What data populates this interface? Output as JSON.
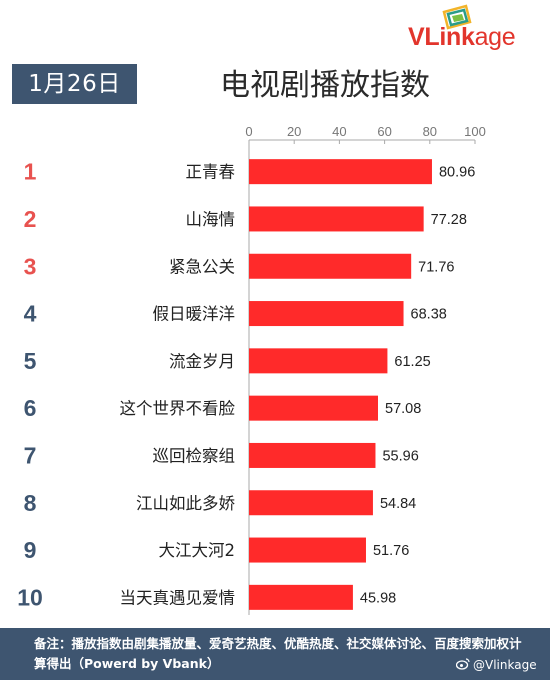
{
  "header": {
    "date": "1月26日",
    "title": "电视剧播放指数",
    "logo_text": "VLinkage"
  },
  "colors": {
    "bar": "#ff2a2a",
    "rank_top": "#e8524f",
    "rank_other": "#3e5570",
    "badge_bg": "#3e5570",
    "axis": "#aaaaaa"
  },
  "chart_data": {
    "type": "bar",
    "orientation": "horizontal",
    "title": "电视剧播放指数",
    "ranks": [
      "1",
      "2",
      "3",
      "4",
      "5",
      "6",
      "7",
      "8",
      "9",
      "10"
    ],
    "categories": [
      "正青春",
      "山海情",
      "紧急公关",
      "假日暖洋洋",
      "流金岁月",
      "这个世界不看脸",
      "巡回检察组",
      "江山如此多娇",
      "大江大河2",
      "当天真遇见爱情"
    ],
    "values": [
      80.96,
      77.28,
      71.76,
      68.38,
      61.25,
      57.08,
      55.96,
      54.84,
      51.76,
      45.98
    ],
    "value_labels": [
      "80.96",
      "77.28",
      "71.76",
      "68.38",
      "61.25",
      "57.08",
      "55.96",
      "54.84",
      "51.76",
      "45.98"
    ],
    "xlim": [
      0,
      100
    ],
    "xticks": [
      "0",
      "20",
      "40",
      "60",
      "80",
      "100"
    ],
    "tick_values": [
      0,
      20,
      40,
      60,
      80,
      100
    ],
    "grid": false,
    "legend": "none"
  },
  "footer": {
    "note": "备注：播放指数由剧集播放量、爱奇艺热度、优酷热度、社交媒体讨论、百度搜索加权计算得出（Powerd by Vbank）",
    "watermark": "@Vlinkage"
  }
}
